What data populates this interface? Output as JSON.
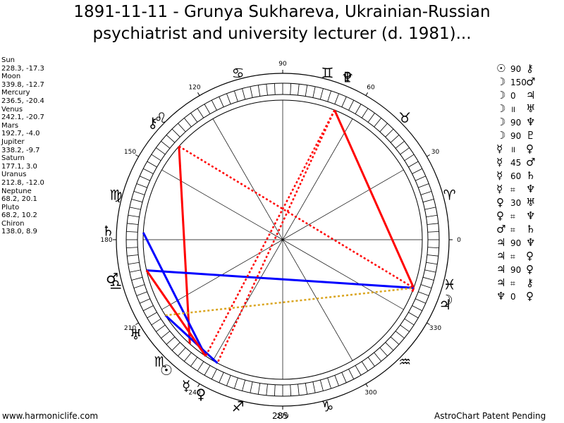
{
  "title": {
    "line1": "1891-11-11 - Grunya Sukhareva, Ukrainian-Russian",
    "line2": "psychiatrist and university lecturer (d. 1981)..."
  },
  "planets": [
    {
      "name": "Sun",
      "pos": "228.3, -17.3",
      "glyph": "☉"
    },
    {
      "name": "Moon",
      "pos": "339.8, -12.7",
      "glyph": "☽"
    },
    {
      "name": "Mercury",
      "pos": "236.5, -20.4",
      "glyph": "☿"
    },
    {
      "name": "Venus",
      "pos": "242.1, -20.7",
      "glyph": "♀"
    },
    {
      "name": "Mars",
      "pos": "192.7, -4.0",
      "glyph": "♂"
    },
    {
      "name": "Jupiter",
      "pos": "338.2, -9.7",
      "glyph": "♃"
    },
    {
      "name": "Saturn",
      "pos": "177.1, 3.0",
      "glyph": "♄"
    },
    {
      "name": "Uranus",
      "pos": "212.8, -12.0",
      "glyph": "♅"
    },
    {
      "name": "Neptune",
      "pos": "68.2, 20.1",
      "glyph": "♆"
    },
    {
      "name": "Pluto",
      "pos": "68.2, 10.2",
      "glyph": "♇"
    },
    {
      "name": "Chiron",
      "pos": "138.0, 8.9",
      "glyph": "⚷"
    }
  ],
  "aspects": [
    {
      "a": "☉",
      "value": "90",
      "b": "⚷"
    },
    {
      "a": "☽",
      "value": "150",
      "b": "♂"
    },
    {
      "a": "☽",
      "value": "0",
      "b": "♃"
    },
    {
      "a": "☽",
      "value": "॥",
      "b": "♅"
    },
    {
      "a": "☽",
      "value": "90",
      "b": "♆"
    },
    {
      "a": "☽",
      "value": "90",
      "b": "♇"
    },
    {
      "a": "☿",
      "value": "॥",
      "b": "♀"
    },
    {
      "a": "☿",
      "value": "45",
      "b": "♂"
    },
    {
      "a": "☿",
      "value": "60",
      "b": "♄"
    },
    {
      "a": "☿",
      "value": "⌗",
      "b": "♆"
    },
    {
      "a": "♀",
      "value": "30",
      "b": "♅"
    },
    {
      "a": "♀",
      "value": "⌗",
      "b": "♆"
    },
    {
      "a": "♂",
      "value": "⌗",
      "b": "♄"
    },
    {
      "a": "♃",
      "value": "90",
      "b": "♆"
    },
    {
      "a": "♃",
      "value": "⌗",
      "b": "♀"
    },
    {
      "a": "♃",
      "value": "90",
      "b": "♀"
    },
    {
      "a": "♃",
      "value": "⌗",
      "b": "⚷"
    },
    {
      "a": "♆",
      "value": "0",
      "b": "♀"
    }
  ],
  "wheel": {
    "degree_labels": [
      "0",
      "30",
      "60",
      "90",
      "120",
      "150",
      "180",
      "210",
      "240",
      "270",
      "300",
      "330"
    ],
    "cusp_labels": [
      "0",
      "90",
      "180",
      "270"
    ],
    "mid_labels": [
      "285"
    ],
    "signs": [
      "♈",
      "♉",
      "♊",
      "♋",
      "♌",
      "♍",
      "♎",
      "♏",
      "♐",
      "♑",
      "♒",
      "♓"
    ]
  },
  "lines": [
    {
      "from": "Moon",
      "to": "Jupiter",
      "color": "#ff0000",
      "style": "solid"
    },
    {
      "from": "Moon",
      "to": "Neptune",
      "color": "#ff0000",
      "style": "solid"
    },
    {
      "from": "Chiron",
      "to": "Sun",
      "color": "#ff0000",
      "style": "solid"
    },
    {
      "from": "Saturn",
      "to": "Mercury",
      "color": "#0000ff",
      "style": "solid"
    },
    {
      "from": "Mars",
      "to": "Moon",
      "color": "#0000ff",
      "style": "solid"
    },
    {
      "from": "Uranus",
      "to": "Venus",
      "color": "#0000ff",
      "style": "solid"
    },
    {
      "from": "Mars",
      "to": "Mercury",
      "color": "#ff0000",
      "style": "solid"
    },
    {
      "from": "Neptune",
      "to": "Mercury",
      "color": "#ff0000",
      "style": "dotted"
    },
    {
      "from": "Pluto",
      "to": "Venus",
      "color": "#ff0000",
      "style": "dotted"
    },
    {
      "from": "Chiron",
      "to": "Moon",
      "color": "#ff0000",
      "style": "dotted"
    },
    {
      "from": "Uranus",
      "to": "Moon",
      "color": "#daa520",
      "style": "dotted"
    }
  ],
  "footer": {
    "left": "www.harmoniclife.com",
    "center": "285",
    "right": "AstroChart Patent Pending"
  },
  "colors": {
    "hard_aspect": "#ff0000",
    "soft_aspect": "#0000ff",
    "minor_aspect": "#daa520"
  }
}
